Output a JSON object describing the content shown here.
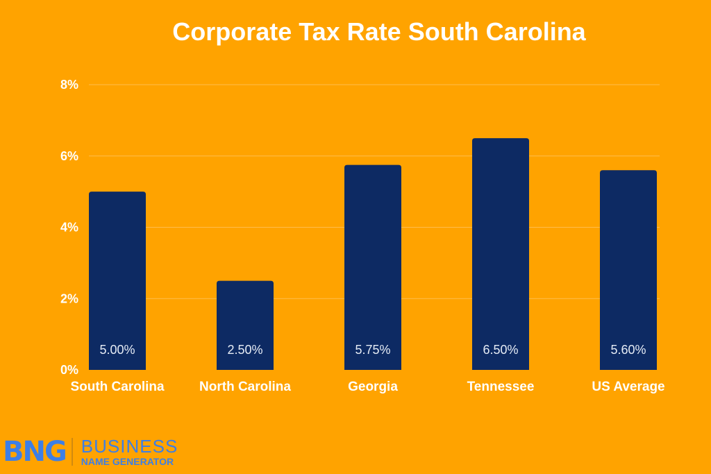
{
  "chart_data": {
    "type": "bar",
    "title": "Corporate Tax Rate South Carolina",
    "categories": [
      "South Carolina",
      "North Carolina",
      "Georgia",
      "Tennessee",
      "US Average"
    ],
    "values": [
      5.0,
      2.5,
      5.75,
      6.5,
      5.6
    ],
    "data_labels": [
      "5.00%",
      "2.50%",
      "5.75%",
      "6.50%",
      "5.60%"
    ],
    "yticks": [
      0,
      2,
      4,
      6,
      8
    ],
    "ytick_labels": [
      "0%",
      "2%",
      "4%",
      "6%",
      "8%"
    ],
    "ylim": [
      0,
      8
    ],
    "xlabel": "",
    "ylabel": "",
    "grid": true,
    "colors": {
      "background": "#FFA300",
      "bar": "#0D2A63",
      "text": "#FFFFFF"
    }
  },
  "logo": {
    "mark": "BNG",
    "line1": "BUSINESS",
    "line2": "NAME GENERATOR"
  }
}
